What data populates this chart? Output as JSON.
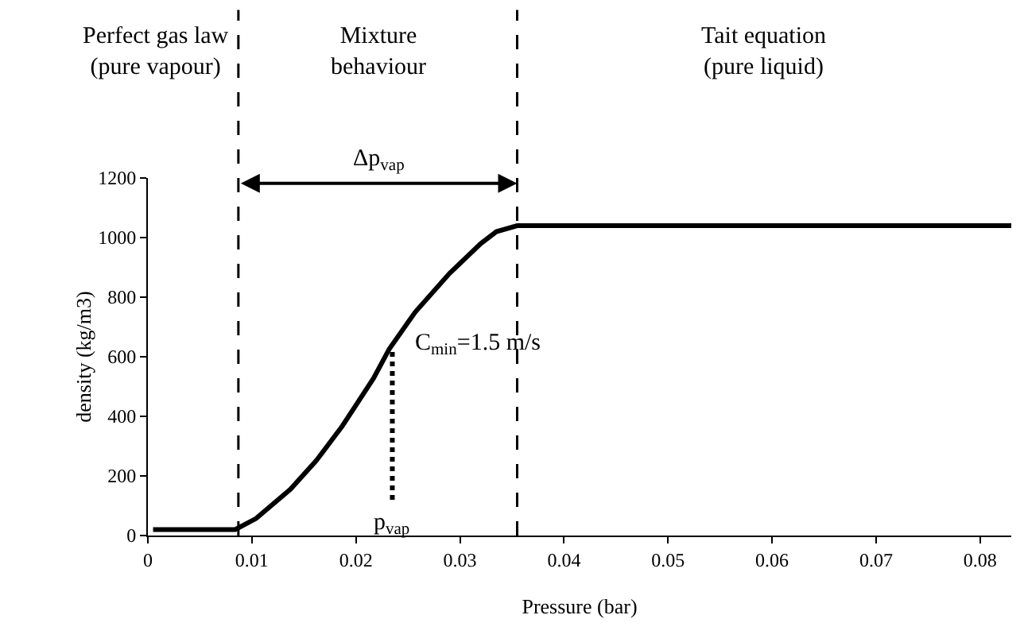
{
  "chart_data": {
    "type": "line",
    "xlabel": "Pressure (bar)",
    "ylabel": "density (kg/m3)",
    "series": [
      {
        "color": "#000000",
        "x": [
          0.0005,
          0.0084,
          0.0104,
          0.0137,
          0.0162,
          0.0187,
          0.0217,
          0.0232,
          0.0257,
          0.029,
          0.032,
          0.0335,
          0.0355,
          0.083
        ],
        "values": [
          20,
          20,
          57,
          155,
          252,
          368,
          528,
          626,
          750,
          880,
          980,
          1020,
          1040,
          1040
        ]
      },
      {
        "color": "#000000",
        "line_style": "dotted",
        "x": [
          0.0235,
          0.0235
        ],
        "values": [
          120,
          620
        ]
      }
    ],
    "xlim": [
      0,
      0.083
    ],
    "ylim": [
      0,
      1200
    ],
    "xticks": [
      0,
      0.01,
      0.02,
      0.03,
      0.04,
      0.05,
      0.06,
      0.07,
      0.08
    ],
    "yticks": [
      0,
      200,
      400,
      600,
      800,
      1000,
      1200
    ],
    "marker": "none",
    "line_style": "solid",
    "ref_lines": [
      {
        "axis": "x",
        "value": 0.0087,
        "line_style": "dashed",
        "color": "#000000"
      },
      {
        "axis": "x",
        "value": 0.0355,
        "line_style": "dashed",
        "color": "#000000"
      }
    ],
    "annotations": [
      "Perfect gas law\n(pure vapour)",
      "Mixture\nbehaviour",
      "Tait equation\n(pure liquid)",
      "Δp$_{vap}$",
      "C$_{min}$=1.5 m/s",
      "p$_{vap}$"
    ]
  }
}
